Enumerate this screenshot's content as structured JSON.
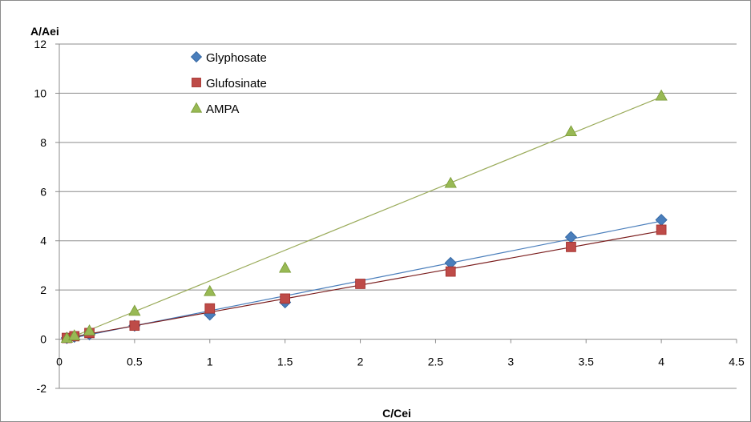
{
  "chart_data": {
    "type": "scatter",
    "xlabel": "C/Cei",
    "ylabel": "A/Aei",
    "xlim": [
      0,
      4.5
    ],
    "ylim": [
      -2,
      12
    ],
    "x_ticks": [
      0,
      0.5,
      1,
      1.5,
      2,
      2.5,
      3,
      3.5,
      4,
      4.5
    ],
    "y_ticks": [
      -2,
      0,
      2,
      4,
      6,
      8,
      10,
      12
    ],
    "x_tick_labels": [
      "0",
      "0.5",
      "1",
      "1.5",
      "2",
      "2.5",
      "3",
      "3.5",
      "4",
      "4.5"
    ],
    "y_tick_labels": [
      "-2",
      "0",
      "2",
      "4",
      "6",
      "8",
      "10",
      "12"
    ],
    "grid": "horizontal",
    "legend_position": "top-left",
    "series": [
      {
        "name": "Glyphosate",
        "marker": "diamond",
        "color": "#4a7ebb",
        "points": [
          [
            0.05,
            0.05
          ],
          [
            0.1,
            0.1
          ],
          [
            0.2,
            0.2
          ],
          [
            0.5,
            0.55
          ],
          [
            1,
            1.0
          ],
          [
            1.5,
            1.5
          ],
          [
            2.6,
            3.1
          ],
          [
            3.4,
            4.15
          ],
          [
            4,
            4.85
          ]
        ],
        "trendline": [
          [
            0.05,
            0.0
          ],
          [
            4,
            4.8
          ]
        ]
      },
      {
        "name": "Glufosinate",
        "marker": "square",
        "color": "#be4b48",
        "points": [
          [
            0.05,
            0.05
          ],
          [
            0.1,
            0.12
          ],
          [
            0.2,
            0.25
          ],
          [
            0.5,
            0.55
          ],
          [
            1,
            1.25
          ],
          [
            1.5,
            1.65
          ],
          [
            2,
            2.25
          ],
          [
            2.6,
            2.75
          ],
          [
            3.4,
            3.75
          ],
          [
            4,
            4.45
          ]
        ],
        "trendline": [
          [
            0.05,
            0.05
          ],
          [
            4,
            4.4
          ]
        ]
      },
      {
        "name": "AMPA",
        "marker": "triangle",
        "color": "#98b954",
        "points": [
          [
            0.05,
            0.05
          ],
          [
            0.1,
            0.15
          ],
          [
            0.2,
            0.35
          ],
          [
            0.5,
            1.15
          ],
          [
            1,
            1.95
          ],
          [
            1.5,
            2.9
          ],
          [
            2.6,
            6.35
          ],
          [
            3.4,
            8.45
          ],
          [
            4,
            9.9
          ]
        ],
        "trendline": [
          [
            0.05,
            0.0
          ],
          [
            4,
            9.85
          ]
        ]
      }
    ]
  }
}
